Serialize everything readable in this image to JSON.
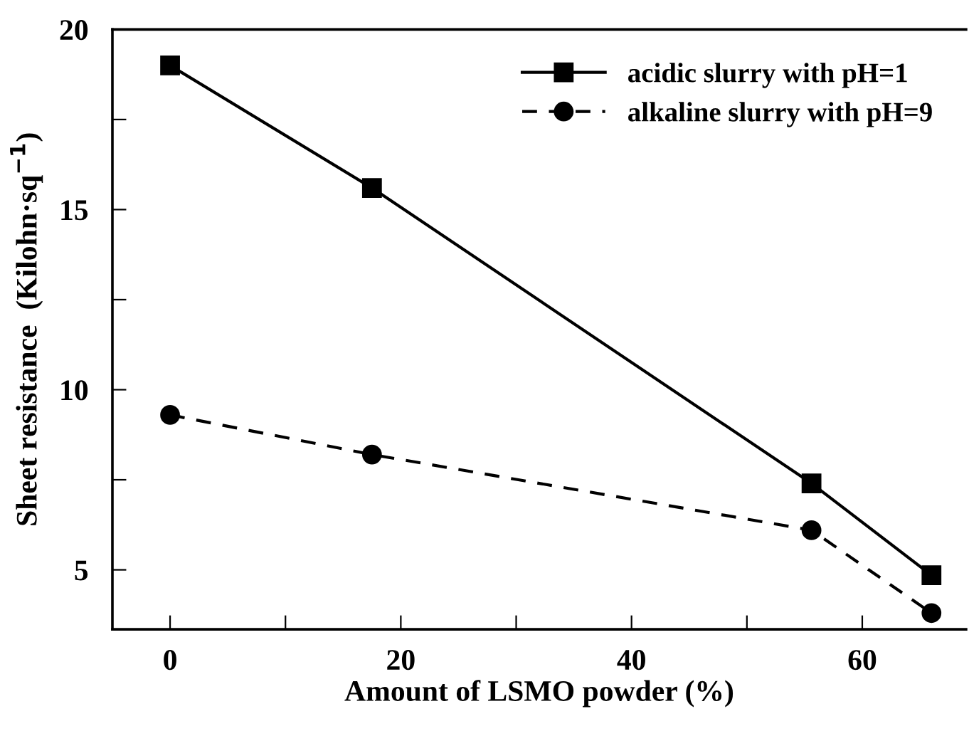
{
  "chart_data": {
    "type": "line",
    "xlabel": "Amount of LSMO powder (%)",
    "ylabel": "Sheet resistance  (Kilohn·sq$^{−1}$)",
    "xlim": [
      -5,
      69
    ],
    "ylim": [
      3.35,
      20
    ],
    "xticks": [
      0,
      {
        "value": 10,
        "label": null
      },
      20,
      {
        "value": 30,
        "label": null
      },
      40,
      {
        "value": 50,
        "label": null
      },
      60
    ],
    "yticks": [
      5,
      {
        "value": 7.5,
        "label": null
      },
      10,
      {
        "value": 12.5,
        "label": null
      },
      15,
      {
        "value": 17.5,
        "label": null
      },
      20
    ],
    "grid": false,
    "legend": "top right",
    "series": [
      {
        "name": "acidic slurry with pH=1",
        "color": "#000000",
        "marker": "square",
        "line_style": "solid",
        "x": [
          0,
          17.5,
          55.6,
          66
        ],
        "values": [
          19.0,
          15.6,
          7.4,
          4.85
        ]
      },
      {
        "name": "alkaline slurry with pH=9",
        "color": "#000000",
        "marker": "circle",
        "line_style": "dashed",
        "x": [
          0,
          17.5,
          55.6,
          66
        ],
        "values": [
          9.3,
          8.2,
          6.1,
          3.8
        ]
      }
    ]
  }
}
